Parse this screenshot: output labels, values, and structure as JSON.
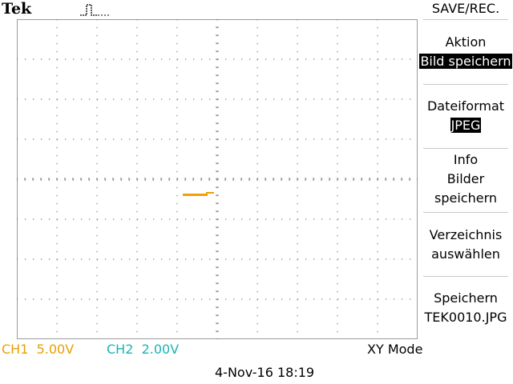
{
  "header": {
    "brand": "Tek",
    "menu_title": "SAVE/REC."
  },
  "menu": {
    "items": [
      {
        "label": "Aktion",
        "value": "Bild speichern"
      },
      {
        "label": "Dateiformat",
        "value": "JPEG"
      },
      {
        "label": "Info",
        "line2": "Bilder",
        "line3": "speichern"
      },
      {
        "label": "Verzeichnis",
        "line2": "auswählen"
      },
      {
        "label": "Speichern",
        "line2": "TEK0010.JPG"
      }
    ]
  },
  "status": {
    "ch1_label": "CH1",
    "ch1_scale": "5.00V",
    "ch2_label": "CH2",
    "ch2_scale": "2.00V",
    "mode": "XY Mode",
    "timestamp": "4-Nov-16 18:19"
  },
  "colors": {
    "ch1": "#e8a000",
    "ch2": "#19b4b4",
    "grid_dots": "#7a7a7a",
    "trace": "#f0a000"
  },
  "icons": {
    "trigger": "pulse-waveform-icon"
  }
}
